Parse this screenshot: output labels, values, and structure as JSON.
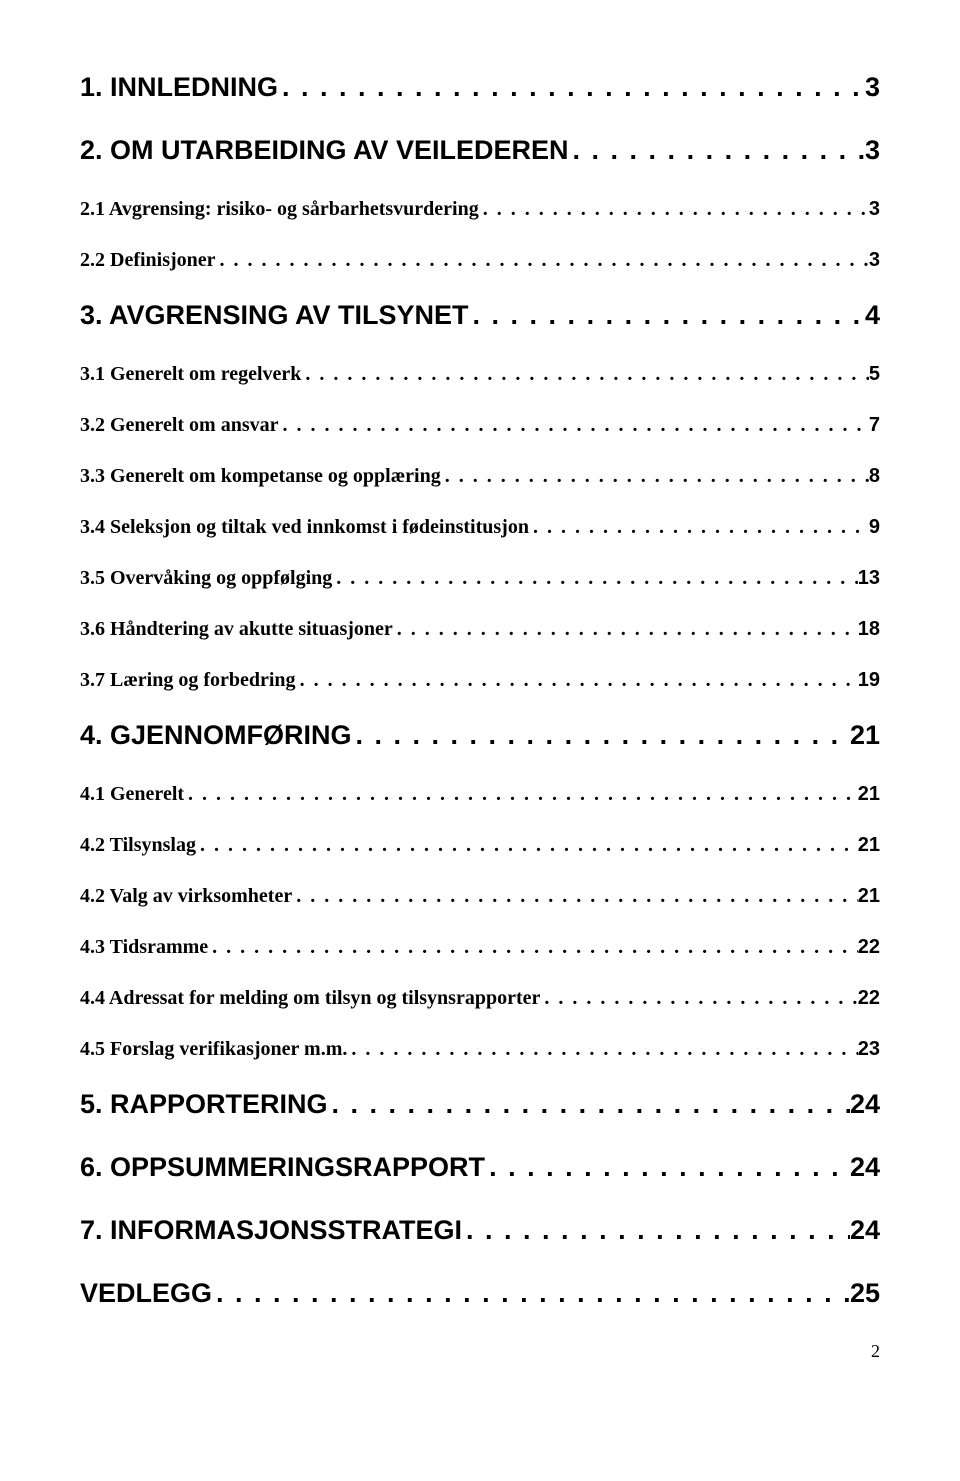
{
  "toc": [
    {
      "level": "heading",
      "label": "1. INNLEDNING",
      "page": "3"
    },
    {
      "level": "heading",
      "label": "2. OM UTARBEIDING AV VEILEDEREN",
      "page": "3"
    },
    {
      "level": "sub",
      "label": "2.1 Avgrensing: risiko- og sårbarhetsvurdering",
      "page": "3"
    },
    {
      "level": "sub",
      "label": "2.2 Definisjoner",
      "page": "3"
    },
    {
      "level": "heading",
      "label": "3. AVGRENSING AV TILSYNET",
      "page": "4"
    },
    {
      "level": "sub",
      "label": "3.1 Generelt om regelverk",
      "page": "5"
    },
    {
      "level": "sub",
      "label": "3.2 Generelt om ansvar",
      "page": "7"
    },
    {
      "level": "sub",
      "label": "3.3 Generelt om kompetanse og opplæring",
      "page": "8"
    },
    {
      "level": "sub",
      "label": "3.4 Seleksjon og tiltak ved innkomst i fødeinstitusjon",
      "page": "9"
    },
    {
      "level": "sub",
      "label": "3.5 Overvåking og oppfølging",
      "page": "13"
    },
    {
      "level": "sub",
      "label": "3.6 Håndtering av akutte situasjoner",
      "page": "18"
    },
    {
      "level": "sub",
      "label": "3.7 Læring og forbedring",
      "page": "19"
    },
    {
      "level": "heading",
      "label": "4. GJENNOMFØRING",
      "page": "21"
    },
    {
      "level": "sub",
      "label": "4.1 Generelt",
      "page": "21"
    },
    {
      "level": "sub",
      "label": "4.2 Tilsynslag",
      "page": "21"
    },
    {
      "level": "sub",
      "label": "4.2 Valg av virksomheter",
      "page": "21"
    },
    {
      "level": "sub",
      "label": "4.3 Tidsramme",
      "page": "22"
    },
    {
      "level": "sub",
      "label": "4.4 Adressat for melding om tilsyn og tilsynsrapporter",
      "page": "22"
    },
    {
      "level": "sub",
      "label": "4.5 Forslag verifikasjoner m.m.",
      "page": "23"
    },
    {
      "level": "heading",
      "label": "5. RAPPORTERING",
      "page": "24"
    },
    {
      "level": "heading",
      "label": "6. OPPSUMMERINGSRAPPORT",
      "page": "24"
    },
    {
      "level": "heading",
      "label": "7. INFORMASJONSSTRATEGI",
      "page": "24"
    },
    {
      "level": "heading",
      "label": "VEDLEGG",
      "page": "25"
    }
  ],
  "pageNumber": "2",
  "dots": ". . . . . . . . . . . . . . . . . . . . . . . . . . . . . . . . . . . . . . . . . . . . . . . . . . . . . . . . . . . . . . . . . . . . . . . . . . . . . . . . . . . . . . . . . . . . . . . . . . . . . . . . . . . . . . . . . . . . . . ."
}
